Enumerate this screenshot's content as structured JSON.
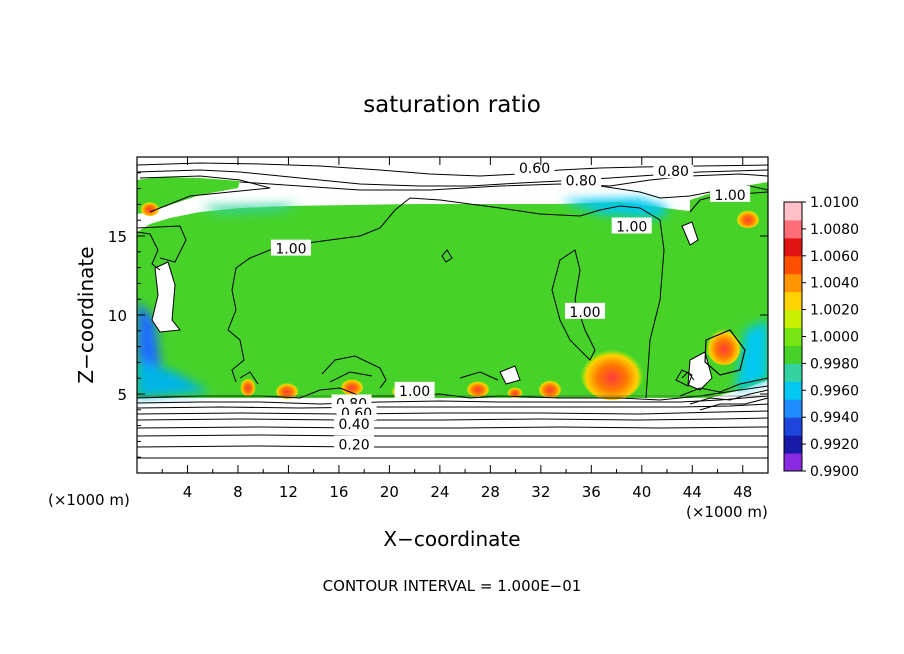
{
  "chart_data": {
    "type": "heatmap",
    "title": "saturation ratio",
    "xlabel": "X−coordinate",
    "ylabel": "Z−coordinate",
    "x_unit_label": "(×1000 m)",
    "y_unit_label": "(×1000 m)",
    "xlim": [
      0,
      50
    ],
    "ylim": [
      0,
      20
    ],
    "x_ticks": [
      4,
      8,
      12,
      16,
      20,
      24,
      28,
      32,
      36,
      40,
      44,
      48
    ],
    "y_ticks": [
      5,
      10,
      15
    ],
    "footer": "CONTOUR INTERVAL = 1.000E−01",
    "colorbar": {
      "min": 0.99,
      "max": 1.01,
      "labels": [
        "1.0100",
        "1.0080",
        "1.0060",
        "1.0040",
        "1.0020",
        "1.0000",
        "0.9980",
        "0.9960",
        "0.9940",
        "0.9920",
        "0.9900"
      ],
      "colors": [
        "#8a2be2",
        "#1a1aa8",
        "#1e46dc",
        "#1e8cff",
        "#00c8f0",
        "#33d2a0",
        "#46d228",
        "#78e614",
        "#c8f000",
        "#ffd200",
        "#ff9600",
        "#ff5000",
        "#e11414",
        "#ff6e78",
        "#ffc0c8"
      ]
    },
    "contour_labels": [
      {
        "text": "0.60",
        "x": 31.5,
        "z": 19.3
      },
      {
        "text": "0.80",
        "x": 35.2,
        "z": 18.5
      },
      {
        "text": "0.80",
        "x": 42.5,
        "z": 19.1
      },
      {
        "text": "1.00",
        "x": 47.0,
        "z": 17.6
      },
      {
        "text": "1.00",
        "x": 12.2,
        "z": 14.2
      },
      {
        "text": "1.00",
        "x": 39.2,
        "z": 15.6
      },
      {
        "text": "1.00",
        "x": 35.5,
        "z": 10.2
      },
      {
        "text": "1.00",
        "x": 22.0,
        "z": 5.2
      },
      {
        "text": "0.80",
        "x": 17.0,
        "z": 4.4
      },
      {
        "text": "0.60",
        "x": 17.4,
        "z": 3.8
      },
      {
        "text": "0.40",
        "x": 17.2,
        "z": 3.1
      },
      {
        "text": "0.20",
        "x": 17.2,
        "z": 1.8
      }
    ]
  }
}
